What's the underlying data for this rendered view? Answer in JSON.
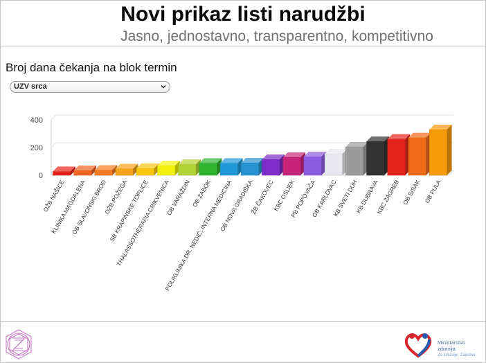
{
  "header": {
    "title": "Novi prikaz listi narudžbi",
    "subtitle": "Jasno, jednostavno, transparentno, kompetitivno"
  },
  "chart_heading": "Broj dana čekanja na blok termin",
  "procedure_select": {
    "value": "UZV srca",
    "icon": "chevron-down-icon"
  },
  "footer": {
    "ministry_name_line1": "Ministarstvo",
    "ministry_name_line2": "zdravlja",
    "ministry_slogan": "Za zdravlje. Zajedno.",
    "left_logo_icon": "z-emblem-icon",
    "right_logo_icon": "heart-people-icon"
  },
  "chart_data": {
    "type": "bar",
    "title": "",
    "xlabel": "",
    "ylabel": "",
    "ylim": [
      0,
      400
    ],
    "yticks": [
      0,
      200,
      400
    ],
    "grid": true,
    "categories": [
      "OŽB NAŠICE",
      "KLINIKA MAGDALENA",
      "OB SLAVONSKI BROD",
      "OŽB POŽEGA",
      "SB KRAPINSKE TOPLICE",
      "THALASSOTHERAPIA CRIKVENICA",
      "OB VARAŽDIN",
      "OB ZABOK",
      "POLIKLINIKA DR. NEDIĆ, INTERNA MEDICINA",
      "OB NOVA GRADIŠKA",
      "ŽB ČAKOVEC",
      "KBC OSIJEK",
      "PB POPOVAČA",
      "OB KARLOVAC",
      "KB SVETI DUH",
      "KB DUBRAVA",
      "KBC ZAGREB",
      "OB SISAK",
      "OB PULA"
    ],
    "values": [
      28,
      35,
      38,
      48,
      50,
      70,
      80,
      88,
      88,
      90,
      115,
      130,
      135,
      155,
      205,
      245,
      262,
      272,
      330
    ],
    "colors": [
      "#e8231a",
      "#f26522",
      "#f47a20",
      "#f7a21b",
      "#f9c80e",
      "#f2f20a",
      "#b4d334",
      "#2fb52f",
      "#1f9ad6",
      "#2893d0",
      "#7b2cc9",
      "#c8247a",
      "#8c5ce0",
      "#e8e8ee",
      "#9b9b9b",
      "#333333",
      "#e4241c",
      "#f06a1a",
      "#f59b0a"
    ]
  }
}
